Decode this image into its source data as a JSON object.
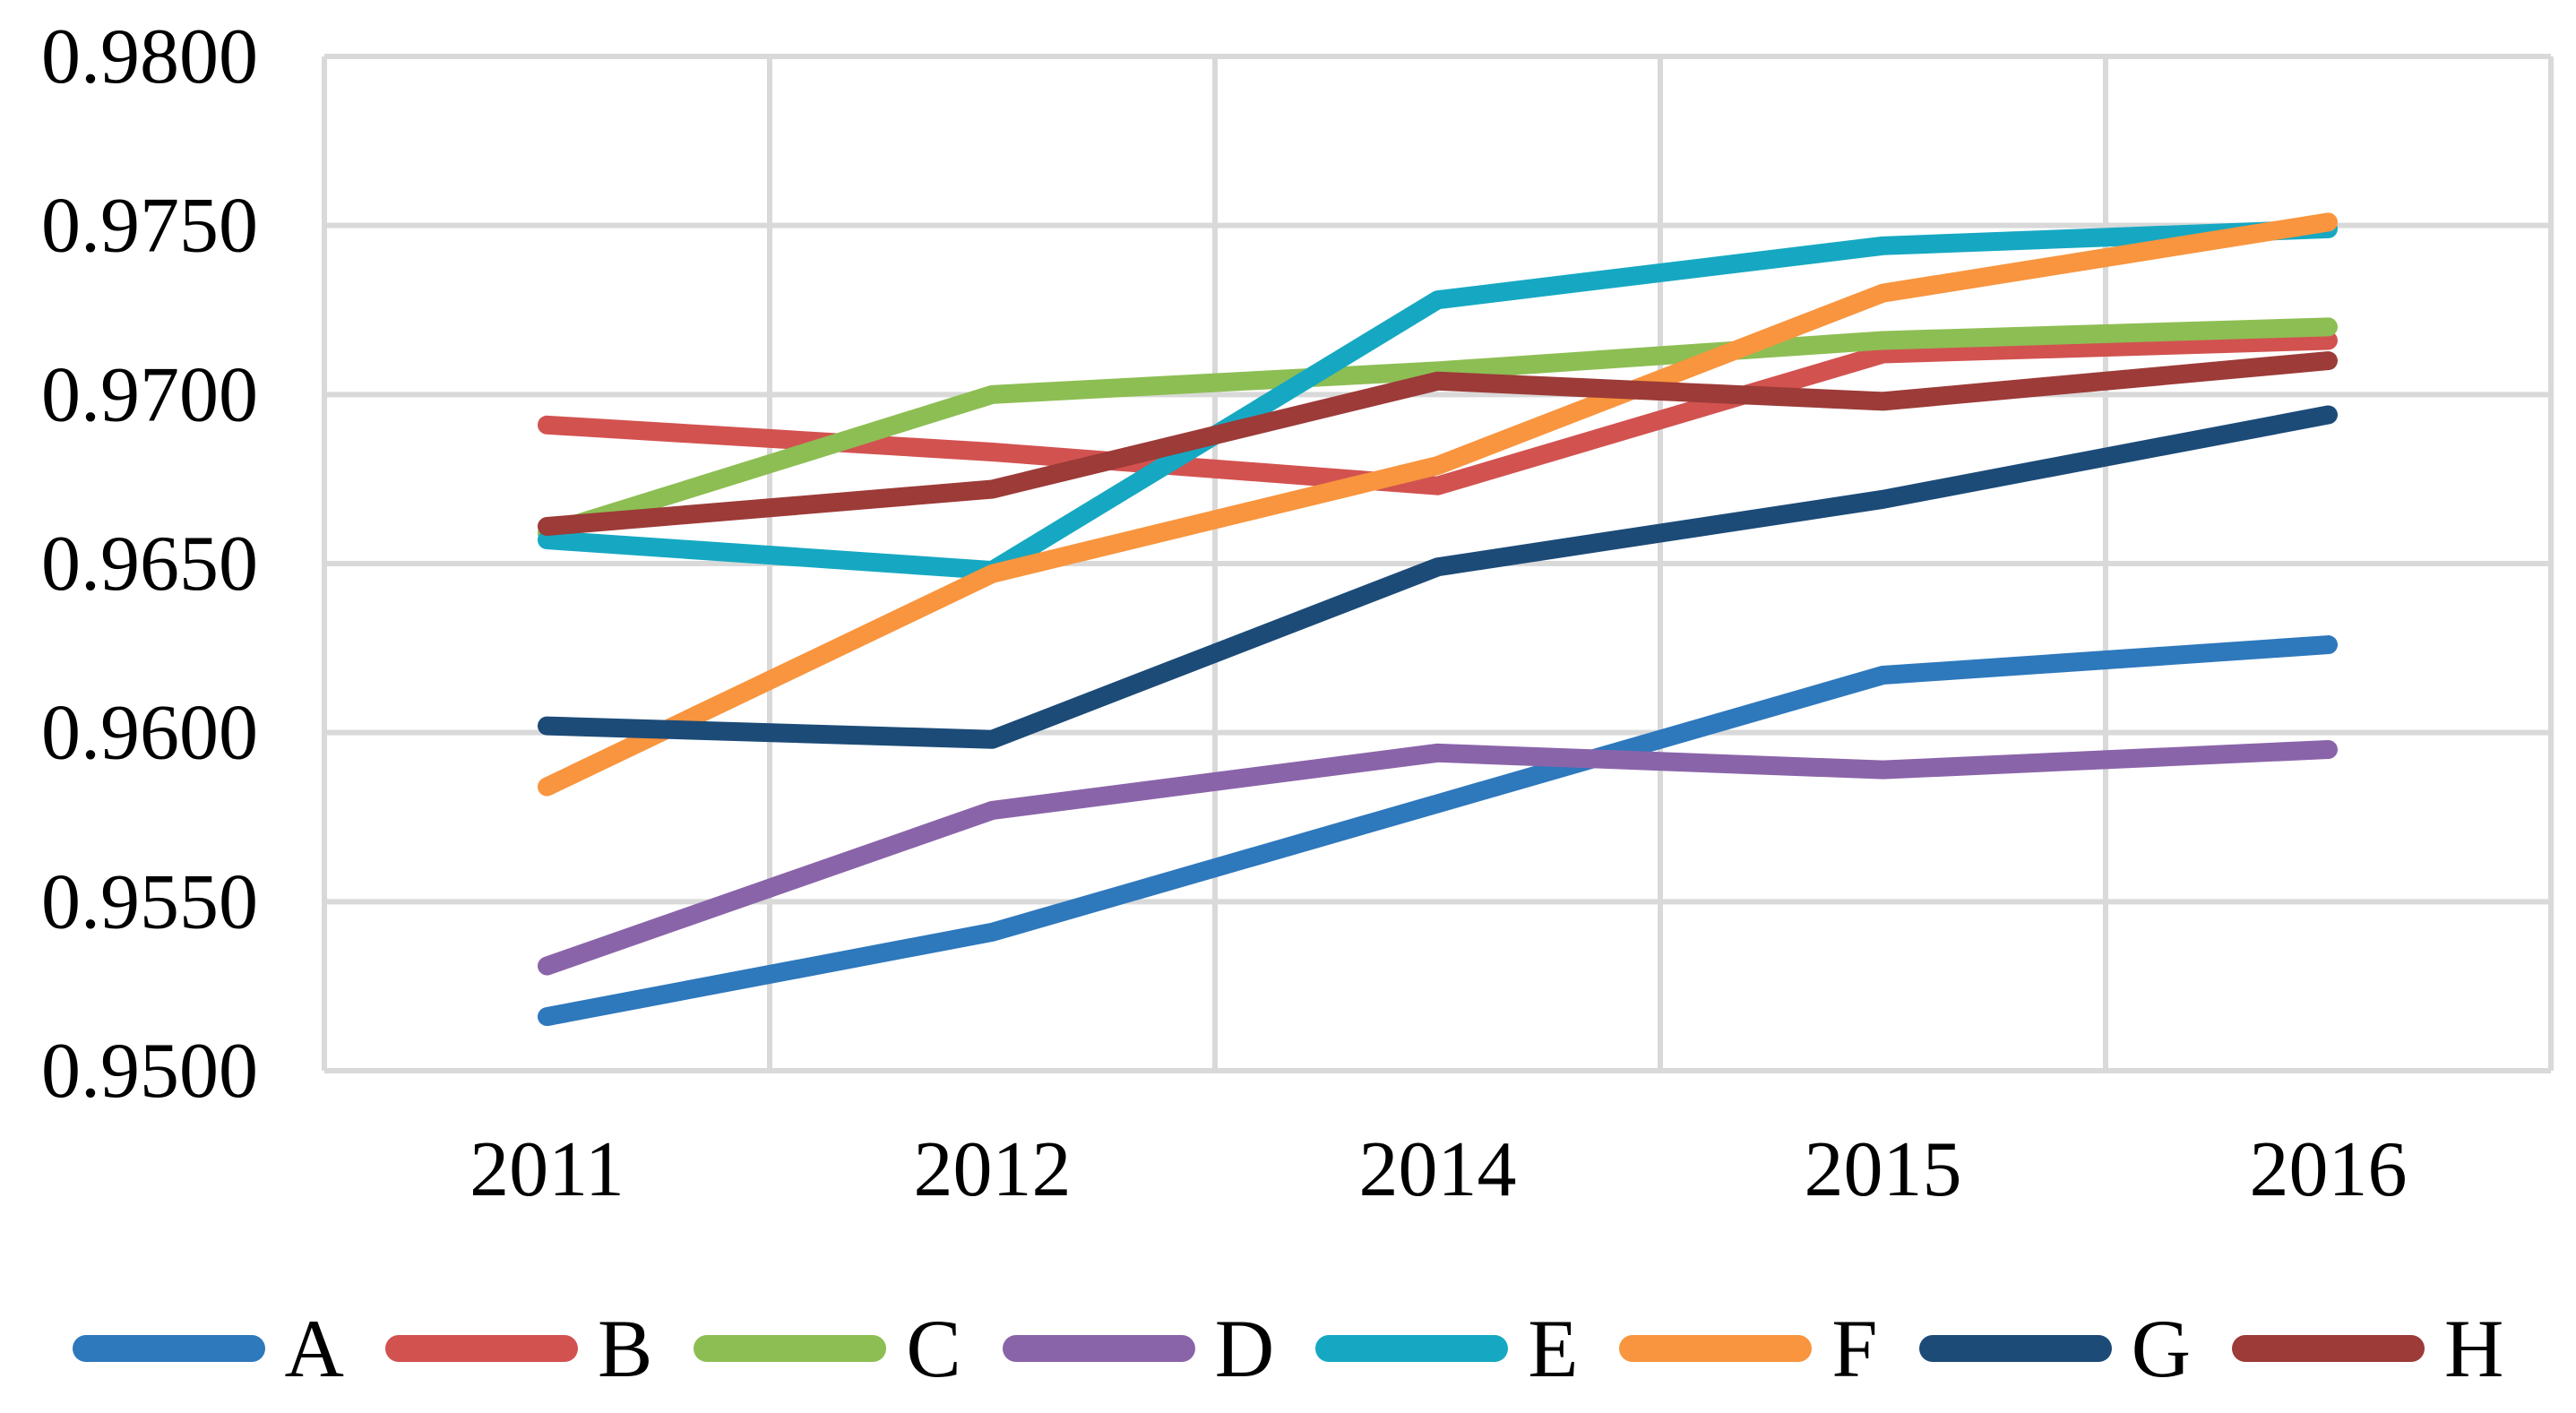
{
  "chart_data": {
    "type": "line",
    "categories": [
      "2011",
      "2012",
      "2014",
      "2015",
      "2016"
    ],
    "series": [
      {
        "name": "A",
        "color": "#2E78BC",
        "values": [
          0.9516,
          0.9541,
          0.9579,
          0.9617,
          0.9626
        ]
      },
      {
        "name": "B",
        "color": "#D25250",
        "values": [
          0.9691,
          0.9683,
          0.9673,
          0.9712,
          0.9716
        ]
      },
      {
        "name": "C",
        "color": "#8DBE53",
        "values": [
          0.9659,
          0.97,
          0.9707,
          0.9716,
          0.972
        ]
      },
      {
        "name": "D",
        "color": "#8A64A9",
        "values": [
          0.9531,
          0.9577,
          0.9594,
          0.9589,
          0.9595
        ]
      },
      {
        "name": "E",
        "color": "#16A8C2",
        "values": [
          0.9657,
          0.9648,
          0.9728,
          0.9744,
          0.9749
        ]
      },
      {
        "name": "F",
        "color": "#F8953E",
        "values": [
          0.9584,
          0.9647,
          0.9679,
          0.973,
          0.9751
        ]
      },
      {
        "name": "G",
        "color": "#1C4B78",
        "values": [
          0.9602,
          0.9598,
          0.9649,
          0.9669,
          0.9694
        ]
      },
      {
        "name": "H",
        "color": "#9C3B38",
        "values": [
          0.9661,
          0.9672,
          0.9704,
          0.9698,
          0.971
        ]
      }
    ],
    "title": "",
    "xlabel": "",
    "ylabel": "",
    "ylim": [
      0.95,
      0.98
    ],
    "ytick_step": 0.005,
    "ytick_labels": [
      "0.9800",
      "0.9750",
      "0.9700",
      "0.9650",
      "0.9600",
      "0.9550",
      "0.9500"
    ],
    "grid": true,
    "gridline_color": "#D9D9D9",
    "background_color": "#FFFFFF",
    "legend_position": "bottom"
  }
}
